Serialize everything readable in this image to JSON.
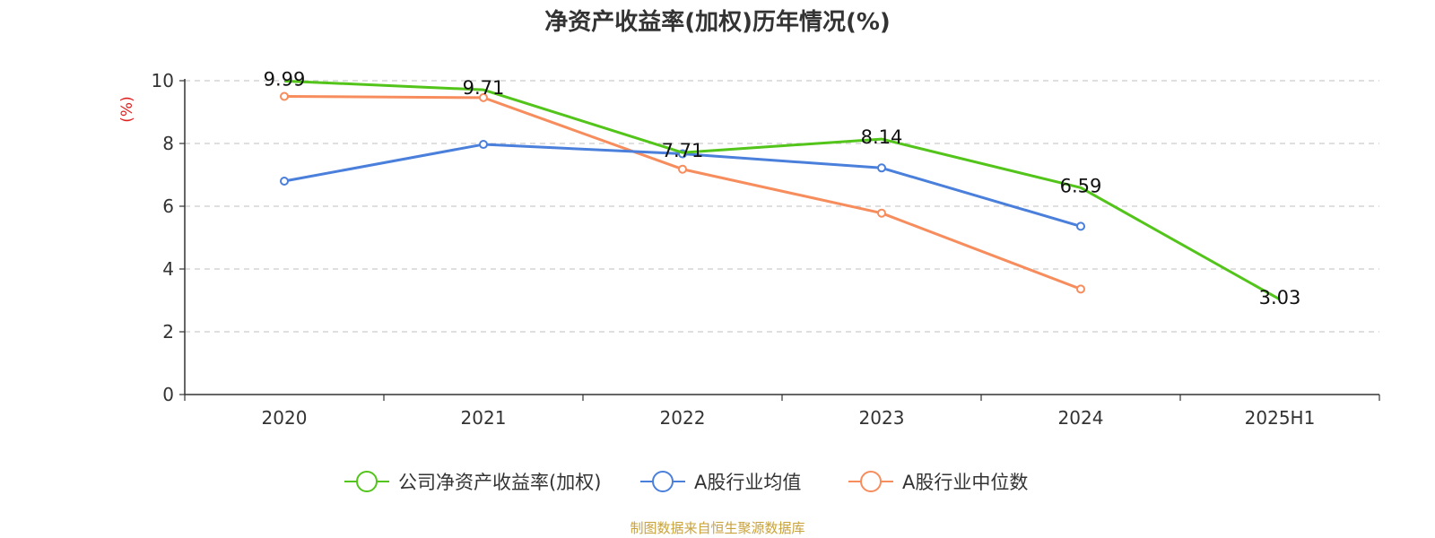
{
  "chart_data": {
    "type": "line",
    "title": "净资产收益率(加权)历年情况(%)",
    "ylabel": "(%)",
    "xlabel": "",
    "ylim": [
      0,
      10
    ],
    "yticks": [
      0,
      2,
      4,
      6,
      8,
      10
    ],
    "grid": true,
    "legend_position": "bottom-center",
    "categories": [
      "2020",
      "2021",
      "2022",
      "2023",
      "2024",
      "2025H1"
    ],
    "series": [
      {
        "name": "公司净资产收益率(加权)",
        "color": "#52c41a",
        "values": [
          9.99,
          9.71,
          7.71,
          8.14,
          6.59,
          3.03
        ],
        "labels": [
          "9.99",
          "9.71",
          "7.71",
          "8.14",
          "6.59",
          "3.03"
        ]
      },
      {
        "name": "A股行业均值",
        "color": "#4a7fdb",
        "values": [
          6.8,
          7.97,
          7.67,
          7.22,
          5.36,
          null
        ]
      },
      {
        "name": "A股行业中位数",
        "color": "#f78c5c",
        "values": [
          9.5,
          9.46,
          7.18,
          5.78,
          3.36,
          null
        ]
      }
    ]
  },
  "source_note": "制图数据来自恒生聚源数据库",
  "colors": {
    "ylabel": "#e02020",
    "source_note": "#c8a23c",
    "grid": "#cccccc",
    "axis": "#333333"
  }
}
